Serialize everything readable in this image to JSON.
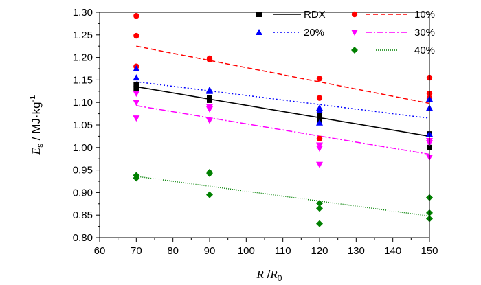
{
  "chart_data": {
    "type": "scatter",
    "xlabel": {
      "var": "R",
      "slash": " /",
      "sub_var": "R",
      "sub": "0"
    },
    "ylabel": {
      "var": "E",
      "sub": "s",
      "unit": " / MJ·kg",
      "sup": "-1"
    },
    "xlim": [
      60,
      150
    ],
    "ylim": [
      0.8,
      1.3
    ],
    "x_ticks": [
      60,
      70,
      80,
      90,
      100,
      110,
      120,
      130,
      140,
      150
    ],
    "y_ticks": [
      0.8,
      0.85,
      0.9,
      0.95,
      1.0,
      1.05,
      1.1,
      1.15,
      1.2,
      1.25,
      1.3
    ],
    "y_tick_labels": [
      "0.80",
      "0.85",
      "0.90",
      "0.95",
      "1.00",
      "1.05",
      "1.10",
      "1.15",
      "1.20",
      "1.25",
      "1.30"
    ],
    "grid": false,
    "legend_placement": "top-right",
    "series": [
      {
        "name": "RDX",
        "marker": "square",
        "color": "#000000",
        "line_style": "solid",
        "points": [
          [
            70,
            1.14
          ],
          [
            70,
            1.13
          ],
          [
            90,
            1.11
          ],
          [
            90,
            1.105
          ],
          [
            120,
            1.07
          ],
          [
            120,
            1.06
          ],
          [
            150,
            1.03
          ],
          [
            150,
            1.0
          ]
        ],
        "fit": [
          [
            70,
            1.135
          ],
          [
            150,
            1.025
          ]
        ]
      },
      {
        "name": "10%",
        "marker": "circle",
        "color": "#ff0000",
        "line_style": "dashed",
        "points": [
          [
            70,
            1.292
          ],
          [
            70,
            1.248
          ],
          [
            70,
            1.18
          ],
          [
            90,
            1.198
          ],
          [
            90,
            1.195
          ],
          [
            120,
            1.153
          ],
          [
            120,
            1.11
          ],
          [
            120,
            1.02
          ],
          [
            150,
            1.155
          ],
          [
            150,
            1.12
          ],
          [
            150,
            1.11
          ]
        ],
        "fit": [
          [
            70,
            1.225
          ],
          [
            150,
            1.098
          ]
        ]
      },
      {
        "name": "20%",
        "marker": "triangle-up",
        "color": "#0000ff",
        "line_style": "dotted",
        "points": [
          [
            70,
            1.175
          ],
          [
            70,
            1.155
          ],
          [
            90,
            1.128
          ],
          [
            90,
            1.125
          ],
          [
            120,
            1.088
          ],
          [
            120,
            1.082
          ],
          [
            120,
            1.055
          ],
          [
            150,
            1.108
          ],
          [
            150,
            1.088
          ],
          [
            150,
            1.03
          ]
        ],
        "fit": [
          [
            70,
            1.146
          ],
          [
            150,
            1.065
          ]
        ]
      },
      {
        "name": "30%",
        "marker": "triangle-down",
        "color": "#ff00ff",
        "line_style": "dashdot",
        "points": [
          [
            70,
            1.12
          ],
          [
            70,
            1.1
          ],
          [
            70,
            1.065
          ],
          [
            90,
            1.09
          ],
          [
            90,
            1.085
          ],
          [
            90,
            1.06
          ],
          [
            120,
            1.005
          ],
          [
            120,
            0.998
          ],
          [
            120,
            0.962
          ],
          [
            150,
            1.015
          ],
          [
            150,
            1.01
          ],
          [
            150,
            0.978
          ]
        ],
        "fit": [
          [
            70,
            1.093
          ],
          [
            150,
            0.985
          ]
        ]
      },
      {
        "name": "40%",
        "marker": "diamond",
        "color": "#008000",
        "line_style": "fine-dotted",
        "points": [
          [
            70,
            0.938
          ],
          [
            70,
            0.932
          ],
          [
            90,
            0.945
          ],
          [
            90,
            0.942
          ],
          [
            90,
            0.895
          ],
          [
            120,
            0.876
          ],
          [
            120,
            0.865
          ],
          [
            120,
            0.831
          ],
          [
            150,
            0.889
          ],
          [
            150,
            0.855
          ],
          [
            150,
            0.842
          ]
        ],
        "fit": [
          [
            70,
            0.936
          ],
          [
            150,
            0.848
          ]
        ]
      }
    ]
  }
}
